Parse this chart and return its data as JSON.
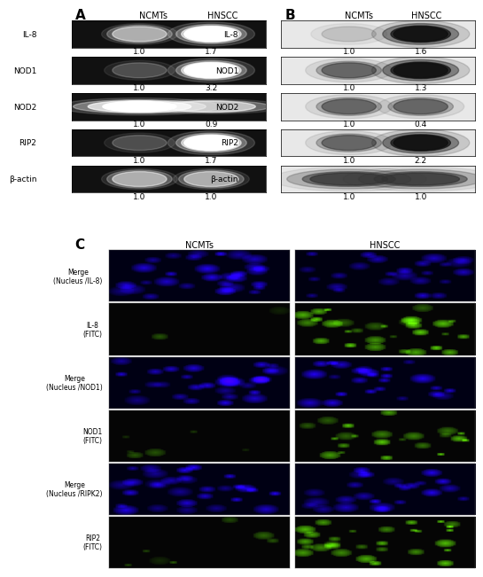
{
  "panel_A_labels": [
    "IL-8",
    "NOD1",
    "NOD2",
    "RIP2",
    "β-actin"
  ],
  "panel_A_ncmts_vals": [
    "1.0",
    "1.0",
    "1.0",
    "1.0",
    "1.0"
  ],
  "panel_A_hnscc_vals": [
    "1.7",
    "3.2",
    "0.9",
    "1.7",
    "1.0"
  ],
  "panel_B_labels": [
    "IL-8",
    "NOD1",
    "NOD2",
    "RIP2",
    "β-actin"
  ],
  "panel_B_ncmts_vals": [
    "1.0",
    "1.0",
    "1.0",
    "1.0",
    "1.0"
  ],
  "panel_B_hnscc_vals": [
    "1.6",
    "1.3",
    "0.4",
    "2.2",
    "1.0"
  ],
  "col_headers": [
    "NCMTs",
    "HNSCC"
  ],
  "panel_C_row_labels": [
    "Merge\n(Nucleus /IL-8)",
    "IL-8\n(FITC)",
    "Merge\n(Nucleus /NOD1)",
    "NOD1\n(FITC)",
    "Merge\n(Nucleus /RIPK2)",
    "RIP2\n(FITC)"
  ],
  "bg_color": "#f5f5f5",
  "band_color_dark": "#1a1a1a",
  "band_color_bright": "#ffffff",
  "text_color": "#000000"
}
